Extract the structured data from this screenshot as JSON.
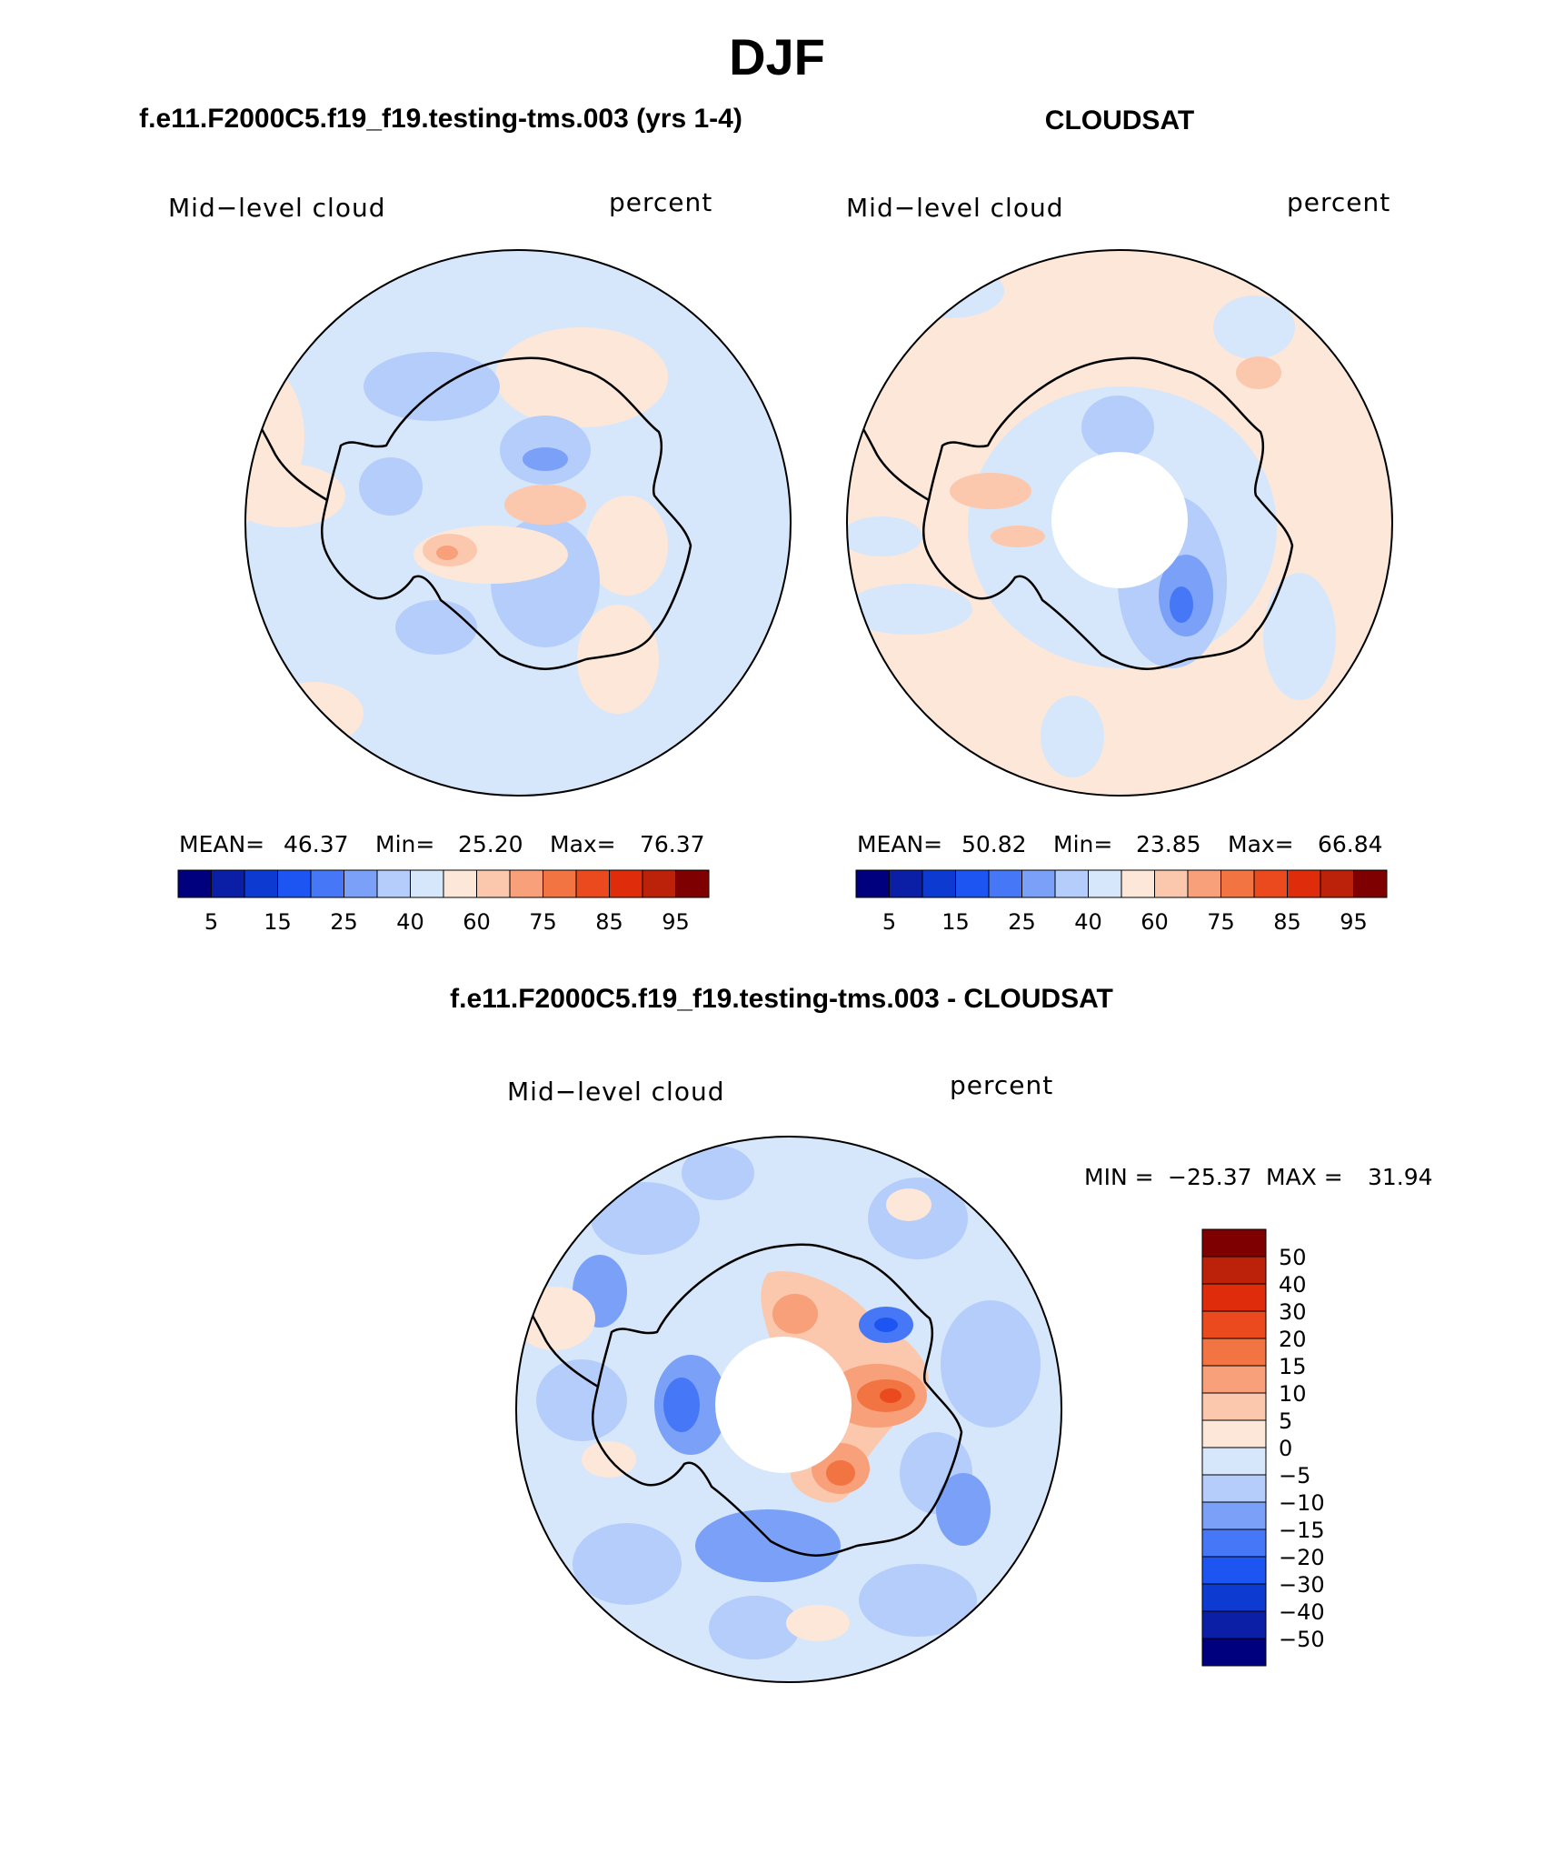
{
  "title": "DJF",
  "panels": [
    {
      "title": "f.e11.F2000C5.f19_f19.testing-tms.003 (yrs 1-4)",
      "variable_label": "Mid−level cloud",
      "units_label": "percent",
      "stats": {
        "mean_label": "MEAN=",
        "mean": "46.37",
        "min_label": "Min=",
        "min": "25.20",
        "max_label": "Max=",
        "max": "76.37"
      },
      "colorbar_ticks": [
        "5",
        "15",
        "25",
        "40",
        "60",
        "75",
        "85",
        "95"
      ],
      "pole_hole": false
    },
    {
      "title": "CLOUDSAT",
      "variable_label": "Mid−level cloud",
      "units_label": "percent",
      "stats": {
        "mean_label": "MEAN=",
        "mean": "50.82",
        "min_label": "Min=",
        "min": "23.85",
        "max_label": "Max=",
        "max": "66.84"
      },
      "colorbar_ticks": [
        "5",
        "15",
        "25",
        "40",
        "60",
        "75",
        "85",
        "95"
      ],
      "pole_hole": true
    }
  ],
  "diff_panel": {
    "title": "f.e11.F2000C5.f19_f19.testing-tms.003 - CLOUDSAT",
    "variable_label": "Mid−level cloud",
    "units_label": "percent",
    "minmax": {
      "min_label": "MIN =",
      "min": "−25.37",
      "max_label": "MAX =",
      "max": "31.94"
    },
    "colorbar_ticks": [
      "50",
      "40",
      "30",
      "20",
      "15",
      "10",
      "5",
      "0",
      "−5",
      "−10",
      "−15",
      "−20",
      "−30",
      "−40",
      "−50"
    ]
  },
  "colors": {
    "abs_scale": [
      "#00007f",
      "#0a1ea6",
      "#0d3ad0",
      "#1d55f2",
      "#4677f6",
      "#7aa0f7",
      "#b5cdfa",
      "#d6e7fb",
      "#fde7d8",
      "#fbc8ae",
      "#f7a07a",
      "#f27443",
      "#ea4a1d",
      "#df2d0c",
      "#bb2209",
      "#7f0000"
    ],
    "diff_scale": [
      "#7f0000",
      "#bb2209",
      "#df2d0c",
      "#ea4a1d",
      "#f27443",
      "#f7a07a",
      "#fbc8ae",
      "#fde7d8",
      "#d6e7fb",
      "#b5cdfa",
      "#7aa0f7",
      "#4677f6",
      "#1d55f2",
      "#0d3ad0",
      "#0a1ea6",
      "#00007f"
    ]
  }
}
